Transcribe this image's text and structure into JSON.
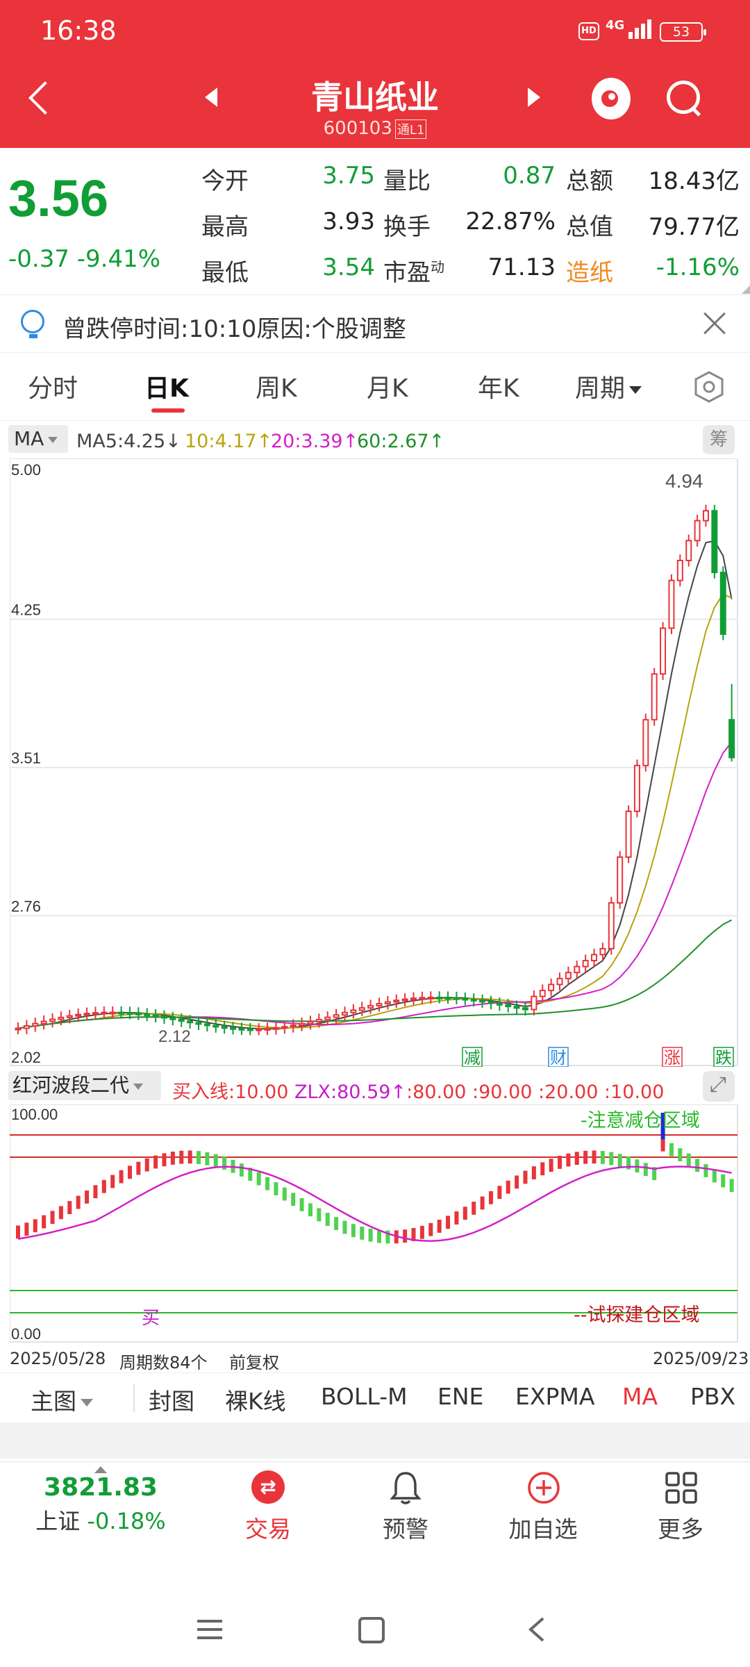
{
  "status_bar": {
    "time": "16:38",
    "hd": "HD",
    "network": "4G",
    "battery": "53"
  },
  "header": {
    "stock_name": "青山纸业",
    "stock_code": "600103",
    "code_tag": "通L1"
  },
  "quote": {
    "price": "3.56",
    "change": "-0.37  -9.41%",
    "fields": [
      {
        "label": "今开",
        "value": "3.75"
      },
      {
        "label": "量比",
        "value": "0.87"
      },
      {
        "label": "总额",
        "value": "18.43亿"
      },
      {
        "label": "最高",
        "value": "3.93"
      },
      {
        "label": "换手",
        "value": "22.87%"
      },
      {
        "label": "总值",
        "value": "79.77亿"
      },
      {
        "label": "最低",
        "value": "3.54"
      },
      {
        "label": "市盈",
        "sup": "动",
        "value": "71.13"
      },
      {
        "label": "造纸",
        "value": "-1.16%"
      }
    ]
  },
  "notice": {
    "text": "曾跌停时间:10:10原因:个股调整"
  },
  "tabs": [
    {
      "label": "分时"
    },
    {
      "label": "日K"
    },
    {
      "label": "周K"
    },
    {
      "label": "月K"
    },
    {
      "label": "年K"
    },
    {
      "label": "周期"
    }
  ],
  "ma_legend": {
    "selector": "MA",
    "items": [
      {
        "text": "MA5:4.25↓",
        "color": "#444444"
      },
      {
        "text": "10:4.17↑",
        "color": "#b9a20e"
      },
      {
        "text": "20:3.39↑",
        "color": "#d21fc9"
      },
      {
        "text": "60:2.67↑",
        "color": "#1f8f2a"
      }
    ],
    "chip": "筹"
  },
  "chart_data": [
    {
      "type": "candlestick",
      "y_axis_labels": [
        "5.00",
        "4.25",
        "3.51",
        "2.76",
        "2.02"
      ],
      "ylim": [
        2.02,
        5.0
      ],
      "high_annotation": "4.94",
      "low_annotation": "2.12",
      "event_tags": [
        "减",
        "财",
        "涨",
        "跌"
      ],
      "start_date": "2025/05/28",
      "end_date": "2025/09/23",
      "period_count": "周期数84个",
      "adjust": "前复权",
      "ma_values": {
        "MA5": 4.25,
        "MA10": 4.17,
        "MA20": 3.39,
        "MA60": 2.67
      },
      "last_close": 3.56,
      "last_high": 3.93,
      "last_low": 3.54,
      "last_open": 3.75
    },
    {
      "type": "bar",
      "name": "红河波段二代",
      "y_axis_labels": [
        "100.00",
        "0.00"
      ],
      "ylim": [
        0,
        100
      ],
      "params": {
        "buy_line": "买入线:10.00",
        "zlx": "ZLX:80.59↑",
        "levels": ":80.00 :90.00 :20.00 :10.00"
      },
      "annotations": {
        "top_zone": "-注意减仓区域",
        "bottom_zone": "--试探建仓区域",
        "buy_mark": "买"
      }
    }
  ],
  "chart_types": [
    {
      "label": "主图"
    },
    {
      "label": "封图"
    },
    {
      "label": "裸K线"
    },
    {
      "label": "BOLL-M"
    },
    {
      "label": "ENE"
    },
    {
      "label": "EXPMA"
    },
    {
      "label": "MA"
    },
    {
      "label": "PBX"
    }
  ],
  "bottom_bar": {
    "index_value": "3821.83",
    "index_name": "上证",
    "index_change": "-0.18%",
    "nav": [
      {
        "label": "交易",
        "icon": "exchange-icon"
      },
      {
        "label": "预警",
        "icon": "bell-icon"
      },
      {
        "label": "加自选",
        "icon": "add-circle-icon"
      },
      {
        "label": "更多",
        "icon": "grid-icon"
      }
    ]
  },
  "colors": {
    "header": "#e8343a",
    "up": "#e8343a",
    "down": "#119d36"
  }
}
